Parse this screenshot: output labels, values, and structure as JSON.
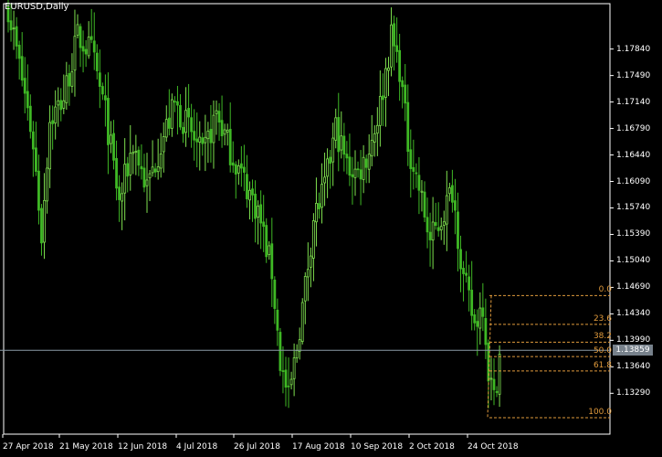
{
  "symbol": "EURUSD,Daily",
  "colors": {
    "background": "#000000",
    "bullish": "#7fe04f",
    "bearish": "#3fb825",
    "axis": "#ffffff",
    "fibonacci": "#e09a3c",
    "bid_line": "#8a9aa6",
    "bid_tag": "#77818b"
  },
  "price_axis": {
    "min": 1.1275,
    "max": 1.1844,
    "ticks": [
      "1.17840",
      "1.17490",
      "1.17140",
      "1.16790",
      "1.16440",
      "1.16090",
      "1.15740",
      "1.15390",
      "1.15040",
      "1.14690",
      "1.14340",
      "1.13990",
      "1.13640",
      "1.13290"
    ],
    "current_price": "1.13859"
  },
  "time_axis": {
    "ticks": [
      "27 Apr 2018",
      "21 May 2018",
      "12 Jun 2018",
      "4 Jul 2018",
      "26 Jul 2018",
      "17 Aug 2018",
      "10 Sep 2018",
      "2 Oct 2018",
      "24 Oct 2018"
    ]
  },
  "fibonacci": {
    "levels": [
      {
        "label": "0.0",
        "price": 1.14582
      },
      {
        "label": "23.6",
        "price": 1.14201
      },
      {
        "label": "38.2",
        "price": 1.13966
      },
      {
        "label": "50.0",
        "price": 1.13775
      },
      {
        "label": "61.8",
        "price": 1.13585
      },
      {
        "label": "100.0",
        "price": 1.12968
      }
    ]
  },
  "chart_data": {
    "type": "candlestick",
    "instrument": "EURUSD",
    "timeframe": "Daily",
    "ylim": [
      1.1275,
      1.1844
    ],
    "x_labels": [
      "27 Apr 2018",
      "21 May 2018",
      "12 Jun 2018",
      "4 Jul 2018",
      "26 Jul 2018",
      "17 Aug 2018",
      "10 Sep 2018",
      "2 Oct 2018",
      "24 Oct 2018"
    ],
    "anchors": [
      [
        0,
        1.184
      ],
      [
        6,
        1.1725
      ],
      [
        9,
        1.166
      ],
      [
        12,
        1.154
      ],
      [
        15,
        1.169
      ],
      [
        20,
        1.172
      ],
      [
        25,
        1.18
      ],
      [
        30,
        1.178
      ],
      [
        35,
        1.17
      ],
      [
        40,
        1.158
      ],
      [
        45,
        1.166
      ],
      [
        50,
        1.16
      ],
      [
        55,
        1.166
      ],
      [
        60,
        1.171
      ],
      [
        65,
        1.168
      ],
      [
        70,
        1.164
      ],
      [
        75,
        1.17
      ],
      [
        80,
        1.165
      ],
      [
        85,
        1.161
      ],
      [
        90,
        1.157
      ],
      [
        95,
        1.149
      ],
      [
        98,
        1.137
      ],
      [
        101,
        1.132
      ],
      [
        104,
        1.139
      ],
      [
        107,
        1.147
      ],
      [
        110,
        1.156
      ],
      [
        114,
        1.16
      ],
      [
        118,
        1.168
      ],
      [
        122,
        1.163
      ],
      [
        126,
        1.162
      ],
      [
        130,
        1.165
      ],
      [
        134,
        1.171
      ],
      [
        138,
        1.18
      ],
      [
        141,
        1.176
      ],
      [
        144,
        1.166
      ],
      [
        148,
        1.16
      ],
      [
        152,
        1.153
      ],
      [
        156,
        1.156
      ],
      [
        160,
        1.16
      ],
      [
        164,
        1.148
      ],
      [
        168,
        1.142
      ],
      [
        171,
        1.145
      ],
      [
        173,
        1.136
      ],
      [
        175,
        1.132
      ],
      [
        177,
        1.138
      ]
    ]
  }
}
